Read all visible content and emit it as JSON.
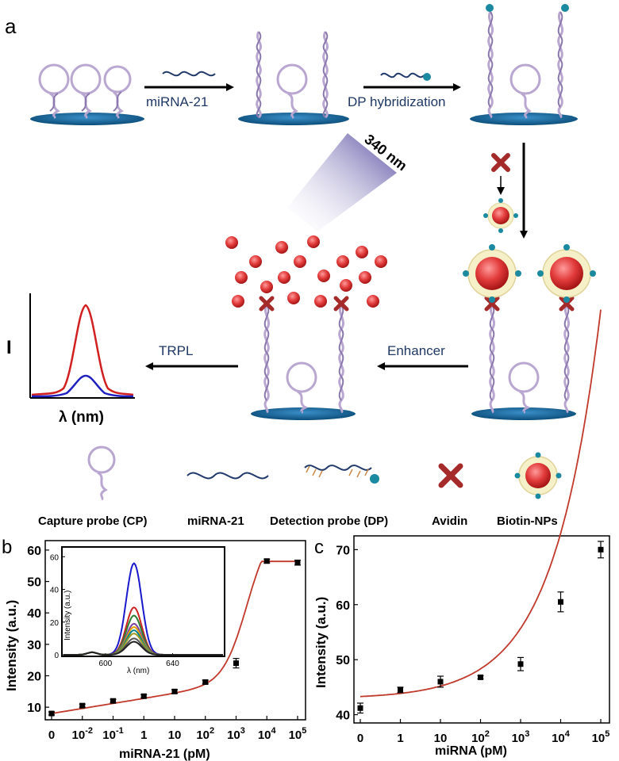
{
  "panel_labels": {
    "a": "a",
    "b": "b",
    "c": "c"
  },
  "schematic": {
    "step1_label": "miRNA-21",
    "step2_label": "DP hybridization",
    "uv_label": "340 nm",
    "step4_label": "Enhancer",
    "step5_label": "TRPL",
    "spectrum_y_label": "I",
    "spectrum_x_label": "λ (nm)",
    "colors": {
      "substrate": "#0f5a8c",
      "dna": "#b9a6d1",
      "nanoparticle": "#e04040",
      "avidin": "#a52a2a",
      "arrow": "#000000",
      "label_text": "#1f3864"
    }
  },
  "legend": {
    "items": [
      {
        "icon": "capture-probe-icon",
        "label": "Capture probe (CP)"
      },
      {
        "icon": "mirna-icon",
        "label": "miRNA-21"
      },
      {
        "icon": "detection-probe-icon",
        "label": "Detection probe (DP)"
      },
      {
        "icon": "avidin-icon",
        "label": "Avidin"
      },
      {
        "icon": "biotin-np-icon",
        "label": "Biotin-NPs"
      }
    ]
  },
  "chart_data": [
    {
      "type": "scatter",
      "panel": "b",
      "xlabel": "miRNA-21 (pM)",
      "ylabel": "Intensity (a.u.)",
      "x_tick_labels": [
        "0",
        "10-2",
        "10-1",
        "1",
        "10",
        "102",
        "103",
        "104",
        "105"
      ],
      "y_ticks": [
        10,
        20,
        30,
        40,
        50,
        60
      ],
      "ylim": [
        6,
        63
      ],
      "points": [
        {
          "x": "0",
          "y": 8,
          "err": 0.5
        },
        {
          "x": "10-2",
          "y": 10.5,
          "err": 0.5
        },
        {
          "x": "10-1",
          "y": 12,
          "err": 0.5
        },
        {
          "x": "1",
          "y": 13.5,
          "err": 0.5
        },
        {
          "x": "10",
          "y": 15,
          "err": 0.6
        },
        {
          "x": "102",
          "y": 18,
          "err": 0.6
        },
        {
          "x": "103",
          "y": 24,
          "err": 1.5
        },
        {
          "x": "104",
          "y": 56.5,
          "err": 0.6
        },
        {
          "x": "105",
          "y": 56,
          "err": 0.8
        }
      ],
      "fit_color": "#c0392b",
      "inset": {
        "type": "line",
        "xlabel": "λ (nm)",
        "ylabel": "Intensity (a.u.)",
        "x_ticks": [
          600,
          640
        ],
        "y_ticks": [
          0,
          20,
          40,
          60
        ],
        "xlim": [
          575,
          670
        ],
        "ylim": [
          0,
          65
        ],
        "peak_center": 617,
        "series_peaks": [
          56,
          29,
          24,
          19,
          17,
          15,
          13,
          10,
          8
        ],
        "series_colors": [
          "#1a1acc",
          "#cc2222",
          "#2e7d32",
          "#7b3fa0",
          "#e6a000",
          "#00838f",
          "#9e9d24",
          "#555555",
          "#222222"
        ]
      }
    },
    {
      "type": "scatter",
      "panel": "c",
      "xlabel": "miRNA (pM)",
      "ylabel": "Intensity (a.u.)",
      "x_tick_labels": [
        "0",
        "1",
        "10",
        "102",
        "103",
        "104",
        "105"
      ],
      "y_ticks": [
        40,
        50,
        60,
        70
      ],
      "ylim": [
        38.5,
        72.5
      ],
      "points": [
        {
          "x": "0",
          "y": 41.2,
          "err": 0.9
        },
        {
          "x": "1",
          "y": 44.5,
          "err": 0.5
        },
        {
          "x": "10",
          "y": 46,
          "err": 1.0
        },
        {
          "x": "102",
          "y": 46.8,
          "err": 0.3
        },
        {
          "x": "103",
          "y": 49.2,
          "err": 1.2
        },
        {
          "x": "104",
          "y": 60.5,
          "err": 1.8
        },
        {
          "x": "105",
          "y": 70,
          "err": 1.5
        }
      ],
      "fit_color": "#c0392b"
    }
  ]
}
